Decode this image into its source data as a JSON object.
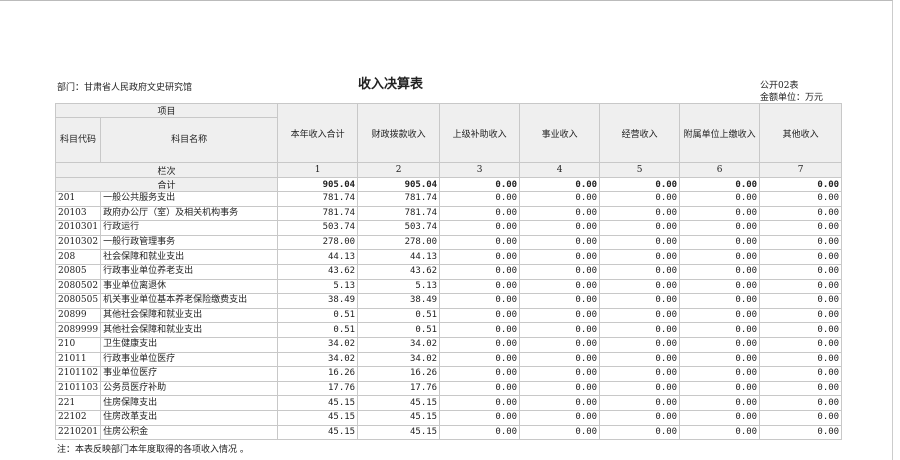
{
  "department": "部门：甘肃省人民政府文史研究馆",
  "title": "收入决算表",
  "form_no": "公开02表",
  "unit": "金额单位：万元",
  "header": {
    "item": "项目",
    "code": "科目代码",
    "name": "科目名称",
    "columns": [
      "本年收入合计",
      "财政拨款收入",
      "上级补助收入",
      "事业收入",
      "经营收入",
      "附属单位上缴收入",
      "其他收入"
    ],
    "seq_label": "栏次",
    "seq": [
      "1",
      "2",
      "3",
      "4",
      "5",
      "6",
      "7"
    ]
  },
  "total": {
    "label": "合计",
    "values": [
      "905.04",
      "905.04",
      "0.00",
      "0.00",
      "0.00",
      "0.00",
      "0.00"
    ]
  },
  "rows": [
    {
      "code": "201",
      "name": "一般公共服务支出",
      "values": [
        "781.74",
        "781.74",
        "0.00",
        "0.00",
        "0.00",
        "0.00",
        "0.00"
      ]
    },
    {
      "code": "20103",
      "name": "政府办公厅（室）及相关机构事务",
      "values": [
        "781.74",
        "781.74",
        "0.00",
        "0.00",
        "0.00",
        "0.00",
        "0.00"
      ]
    },
    {
      "code": "2010301",
      "name": "行政运行",
      "values": [
        "503.74",
        "503.74",
        "0.00",
        "0.00",
        "0.00",
        "0.00",
        "0.00"
      ]
    },
    {
      "code": "2010302",
      "name": "一般行政管理事务",
      "values": [
        "278.00",
        "278.00",
        "0.00",
        "0.00",
        "0.00",
        "0.00",
        "0.00"
      ]
    },
    {
      "code": "208",
      "name": "社会保障和就业支出",
      "values": [
        "44.13",
        "44.13",
        "0.00",
        "0.00",
        "0.00",
        "0.00",
        "0.00"
      ]
    },
    {
      "code": "20805",
      "name": "行政事业单位养老支出",
      "values": [
        "43.62",
        "43.62",
        "0.00",
        "0.00",
        "0.00",
        "0.00",
        "0.00"
      ]
    },
    {
      "code": "2080502",
      "name": "事业单位离退休",
      "values": [
        "5.13",
        "5.13",
        "0.00",
        "0.00",
        "0.00",
        "0.00",
        "0.00"
      ]
    },
    {
      "code": "2080505",
      "name": "机关事业单位基本养老保险缴费支出",
      "values": [
        "38.49",
        "38.49",
        "0.00",
        "0.00",
        "0.00",
        "0.00",
        "0.00"
      ]
    },
    {
      "code": "20899",
      "name": "其他社会保障和就业支出",
      "values": [
        "0.51",
        "0.51",
        "0.00",
        "0.00",
        "0.00",
        "0.00",
        "0.00"
      ]
    },
    {
      "code": "2089999",
      "name": "其他社会保障和就业支出",
      "values": [
        "0.51",
        "0.51",
        "0.00",
        "0.00",
        "0.00",
        "0.00",
        "0.00"
      ]
    },
    {
      "code": "210",
      "name": "卫生健康支出",
      "values": [
        "34.02",
        "34.02",
        "0.00",
        "0.00",
        "0.00",
        "0.00",
        "0.00"
      ]
    },
    {
      "code": "21011",
      "name": "行政事业单位医疗",
      "values": [
        "34.02",
        "34.02",
        "0.00",
        "0.00",
        "0.00",
        "0.00",
        "0.00"
      ]
    },
    {
      "code": "2101102",
      "name": "事业单位医疗",
      "values": [
        "16.26",
        "16.26",
        "0.00",
        "0.00",
        "0.00",
        "0.00",
        "0.00"
      ]
    },
    {
      "code": "2101103",
      "name": "公务员医疗补助",
      "values": [
        "17.76",
        "17.76",
        "0.00",
        "0.00",
        "0.00",
        "0.00",
        "0.00"
      ]
    },
    {
      "code": "221",
      "name": "住房保障支出",
      "values": [
        "45.15",
        "45.15",
        "0.00",
        "0.00",
        "0.00",
        "0.00",
        "0.00"
      ]
    },
    {
      "code": "22102",
      "name": "住房改革支出",
      "values": [
        "45.15",
        "45.15",
        "0.00",
        "0.00",
        "0.00",
        "0.00",
        "0.00"
      ]
    },
    {
      "code": "2210201",
      "name": "住房公积金",
      "values": [
        "45.15",
        "45.15",
        "0.00",
        "0.00",
        "0.00",
        "0.00",
        "0.00"
      ]
    }
  ],
  "note": "注：本表反映部门本年度取得的各项收入情况 。"
}
